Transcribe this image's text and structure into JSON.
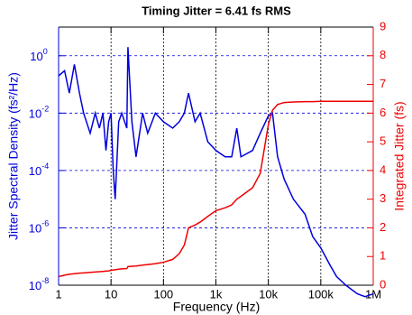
{
  "chart_data": {
    "type": "line",
    "title": "Timing Jitter =  6.41 fs RMS",
    "xlabel": "Frequency (Hz)",
    "ylabel": "Jitter Spectral Density (fs²/Hz)",
    "y2label": "Integrated Jitter (fs)",
    "xscale": "log",
    "yscale": "log",
    "xlim": [
      1,
      1000000
    ],
    "xticks": [
      1,
      10,
      100,
      {
        "value": 1000,
        "label": "1k"
      },
      {
        "value": 10000,
        "label": "10k"
      },
      {
        "value": 100000,
        "label": "100k"
      },
      {
        "value": 1000000,
        "label": "1M"
      }
    ],
    "ylim": [
      1e-08,
      10
    ],
    "yticks": [
      {
        "value": 1e-08,
        "label": "10",
        "exponent": "-8"
      },
      {
        "value": 1e-06,
        "label": "10",
        "exponent": "-6"
      },
      {
        "value": 0.0001,
        "label": "10",
        "exponent": "-4"
      },
      {
        "value": 0.01,
        "label": "10",
        "exponent": "-2"
      },
      {
        "value": 1,
        "label": "10",
        "exponent": "0"
      }
    ],
    "y2lim": [
      0,
      9
    ],
    "y2ticks": [
      0,
      1,
      2,
      3,
      4,
      5,
      6,
      7,
      8,
      9
    ],
    "xgrid": true,
    "ygrid": true,
    "ycolor": "#0000dd",
    "y2color": "#ee0000",
    "x": [
      1,
      1.3,
      1.6,
      2,
      2.5,
      3,
      4,
      5,
      6,
      7,
      8,
      9,
      10,
      11,
      12,
      14,
      16,
      20,
      21,
      25,
      30,
      40,
      50,
      70,
      100,
      150,
      200,
      250,
      300,
      400,
      500,
      700,
      1000,
      1500,
      2000,
      2500,
      3000,
      5000,
      7000,
      10000,
      12000,
      15000,
      20000,
      30000,
      50000,
      70000,
      100000,
      150000,
      200000,
      300000,
      500000,
      700000,
      1000000
    ],
    "series": [
      {
        "name": "Jitter Spectral Density",
        "color": "#0000dd",
        "axis": "y",
        "values": [
          0.2,
          0.3,
          0.05,
          0.5,
          0.05,
          0.01,
          0.002,
          0.01,
          0.003,
          0.01,
          0.0005,
          0.005,
          0.01,
          0.0001,
          1e-05,
          0.005,
          0.01,
          0.003,
          2,
          0.005,
          0.0003,
          0.01,
          0.002,
          0.01,
          0.005,
          0.003,
          0.005,
          0.01,
          0.05,
          0.005,
          0.01,
          0.001,
          0.0005,
          0.0003,
          0.0003,
          0.003,
          0.0003,
          0.0005,
          0.002,
          0.008,
          0.01,
          0.0003,
          5e-05,
          1e-05,
          3e-06,
          5e-07,
          2e-07,
          5e-08,
          2e-08,
          1e-08,
          5e-09,
          4e-09,
          5e-09
        ]
      },
      {
        "name": "Integrated Jitter",
        "color": "#ee0000",
        "axis": "y2",
        "values": [
          0.3,
          0.35,
          0.38,
          0.4,
          0.42,
          0.43,
          0.45,
          0.46,
          0.47,
          0.48,
          0.49,
          0.5,
          0.52,
          0.53,
          0.54,
          0.56,
          0.57,
          0.58,
          0.65,
          0.66,
          0.67,
          0.7,
          0.72,
          0.75,
          0.8,
          0.9,
          1.1,
          1.4,
          2.0,
          2.1,
          2.2,
          2.4,
          2.6,
          2.7,
          2.8,
          3.0,
          3.1,
          3.4,
          3.9,
          5.6,
          6.1,
          6.3,
          6.37,
          6.39,
          6.4,
          6.4,
          6.41,
          6.41,
          6.41,
          6.41,
          6.41,
          6.41,
          6.41
        ]
      }
    ]
  }
}
